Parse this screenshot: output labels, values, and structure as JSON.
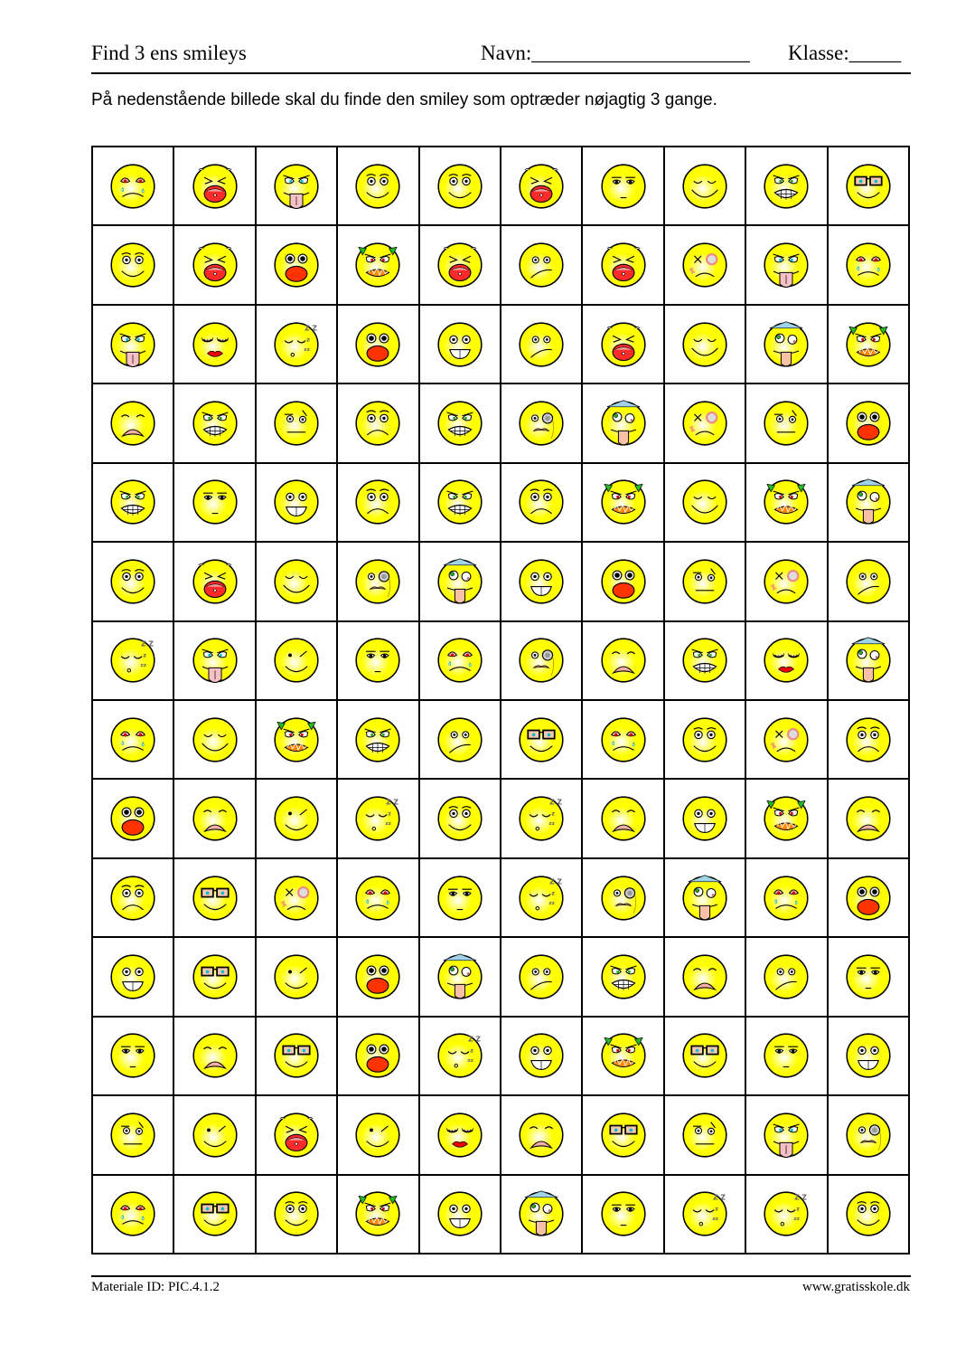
{
  "header": {
    "title": "Find 3 ens smileys",
    "name_label": "Navn:_____________________",
    "class_label": "Klasse:_____"
  },
  "instruction": "På nedenstående billede skal du finde den smiley som optræder nøjagtig 3 gange.",
  "colors": {
    "face": "#ffff00",
    "mouth_red": "#ff2a2a",
    "horn": "#22bb22",
    "hat": "#9fd4e8"
  },
  "grid": [
    [
      "crying",
      "screaming",
      "tongue-angry",
      "happy",
      "happy",
      "screaming",
      "unimpressed",
      "content",
      "grimace",
      "glasses"
    ],
    [
      "happy",
      "screaming",
      "shocked",
      "devil",
      "screaming",
      "confused",
      "screaming",
      "injured",
      "tongue-angry",
      "crying"
    ],
    [
      "tongue-angry",
      "kiss",
      "sleeping",
      "shocked",
      "grin",
      "confused",
      "screaming",
      "content",
      "crazy",
      "devil"
    ],
    [
      "sad",
      "grimace",
      "skeptical",
      "frown",
      "grimace",
      "monocle",
      "crazy",
      "injured",
      "skeptical",
      "shocked"
    ],
    [
      "grimace",
      "unimpressed",
      "grin",
      "frown",
      "grimace",
      "frown",
      "devil",
      "content",
      "devil",
      "crazy"
    ],
    [
      "happy",
      "screaming",
      "content",
      "monocle",
      "crazy",
      "grin",
      "shocked",
      "skeptical",
      "injured",
      "confused"
    ],
    [
      "sleeping",
      "tongue-angry",
      "wink",
      "unimpressed",
      "crying",
      "monocle",
      "sad",
      "grimace",
      "kiss",
      "crazy"
    ],
    [
      "crying",
      "content",
      "devil",
      "grimace",
      "confused",
      "glasses",
      "crying",
      "happy",
      "injured",
      "frown"
    ],
    [
      "shocked",
      "sad",
      "wink",
      "sleeping",
      "happy",
      "sleeping",
      "sad",
      "grin",
      "devil",
      "sad"
    ],
    [
      "frown",
      "glasses",
      "injured",
      "crying",
      "unimpressed",
      "sleeping",
      "monocle",
      "crazy",
      "crying",
      "shocked"
    ],
    [
      "grin",
      "glasses",
      "wink",
      "shocked",
      "crazy",
      "confused",
      "grimace",
      "sad",
      "confused",
      "unimpressed"
    ],
    [
      "unimpressed",
      "sad",
      "glasses",
      "shocked",
      "sleeping",
      "grin",
      "devil",
      "glasses",
      "unimpressed",
      "grin"
    ],
    [
      "skeptical",
      "wink",
      "screaming",
      "wink",
      "kiss",
      "sad",
      "glasses",
      "skeptical",
      "tongue-angry",
      "monocle"
    ],
    [
      "crying",
      "glasses",
      "happy",
      "devil",
      "grin",
      "crazy",
      "unimpressed",
      "sleeping",
      "sleeping",
      "happy"
    ]
  ],
  "footer": {
    "material_id": "Materiale ID: PIC.4.1.2",
    "website": "www.gratisskole.dk"
  }
}
